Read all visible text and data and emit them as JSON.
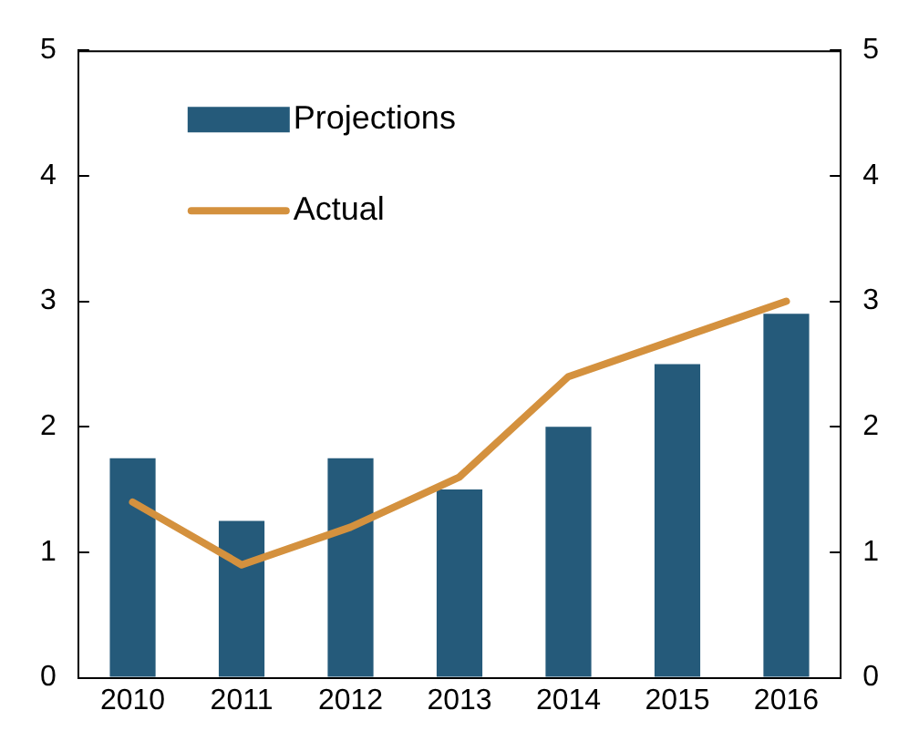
{
  "chart_data": {
    "type": "bar",
    "categories": [
      "2010",
      "2011",
      "2012",
      "2013",
      "2014",
      "2015",
      "2016"
    ],
    "series": [
      {
        "name": "Projections",
        "color": "#255a7a",
        "values": [
          1.75,
          1.25,
          1.75,
          1.5,
          2.0,
          2.5,
          2.9
        ]
      },
      {
        "name": "Actual",
        "type": "line",
        "color": "#d4913e",
        "values": [
          1.4,
          0.9,
          1.2,
          1.6,
          2.4,
          2.7,
          3.0
        ]
      }
    ],
    "ylim": [
      0,
      5
    ],
    "yticks": [
      0,
      1,
      2,
      3,
      4,
      5
    ],
    "y2lim": [
      0,
      5
    ],
    "y2ticks": [
      0,
      1,
      2,
      3,
      4,
      5
    ],
    "grid": false,
    "legend": "top left",
    "marker": "none",
    "line_style": "solid"
  }
}
